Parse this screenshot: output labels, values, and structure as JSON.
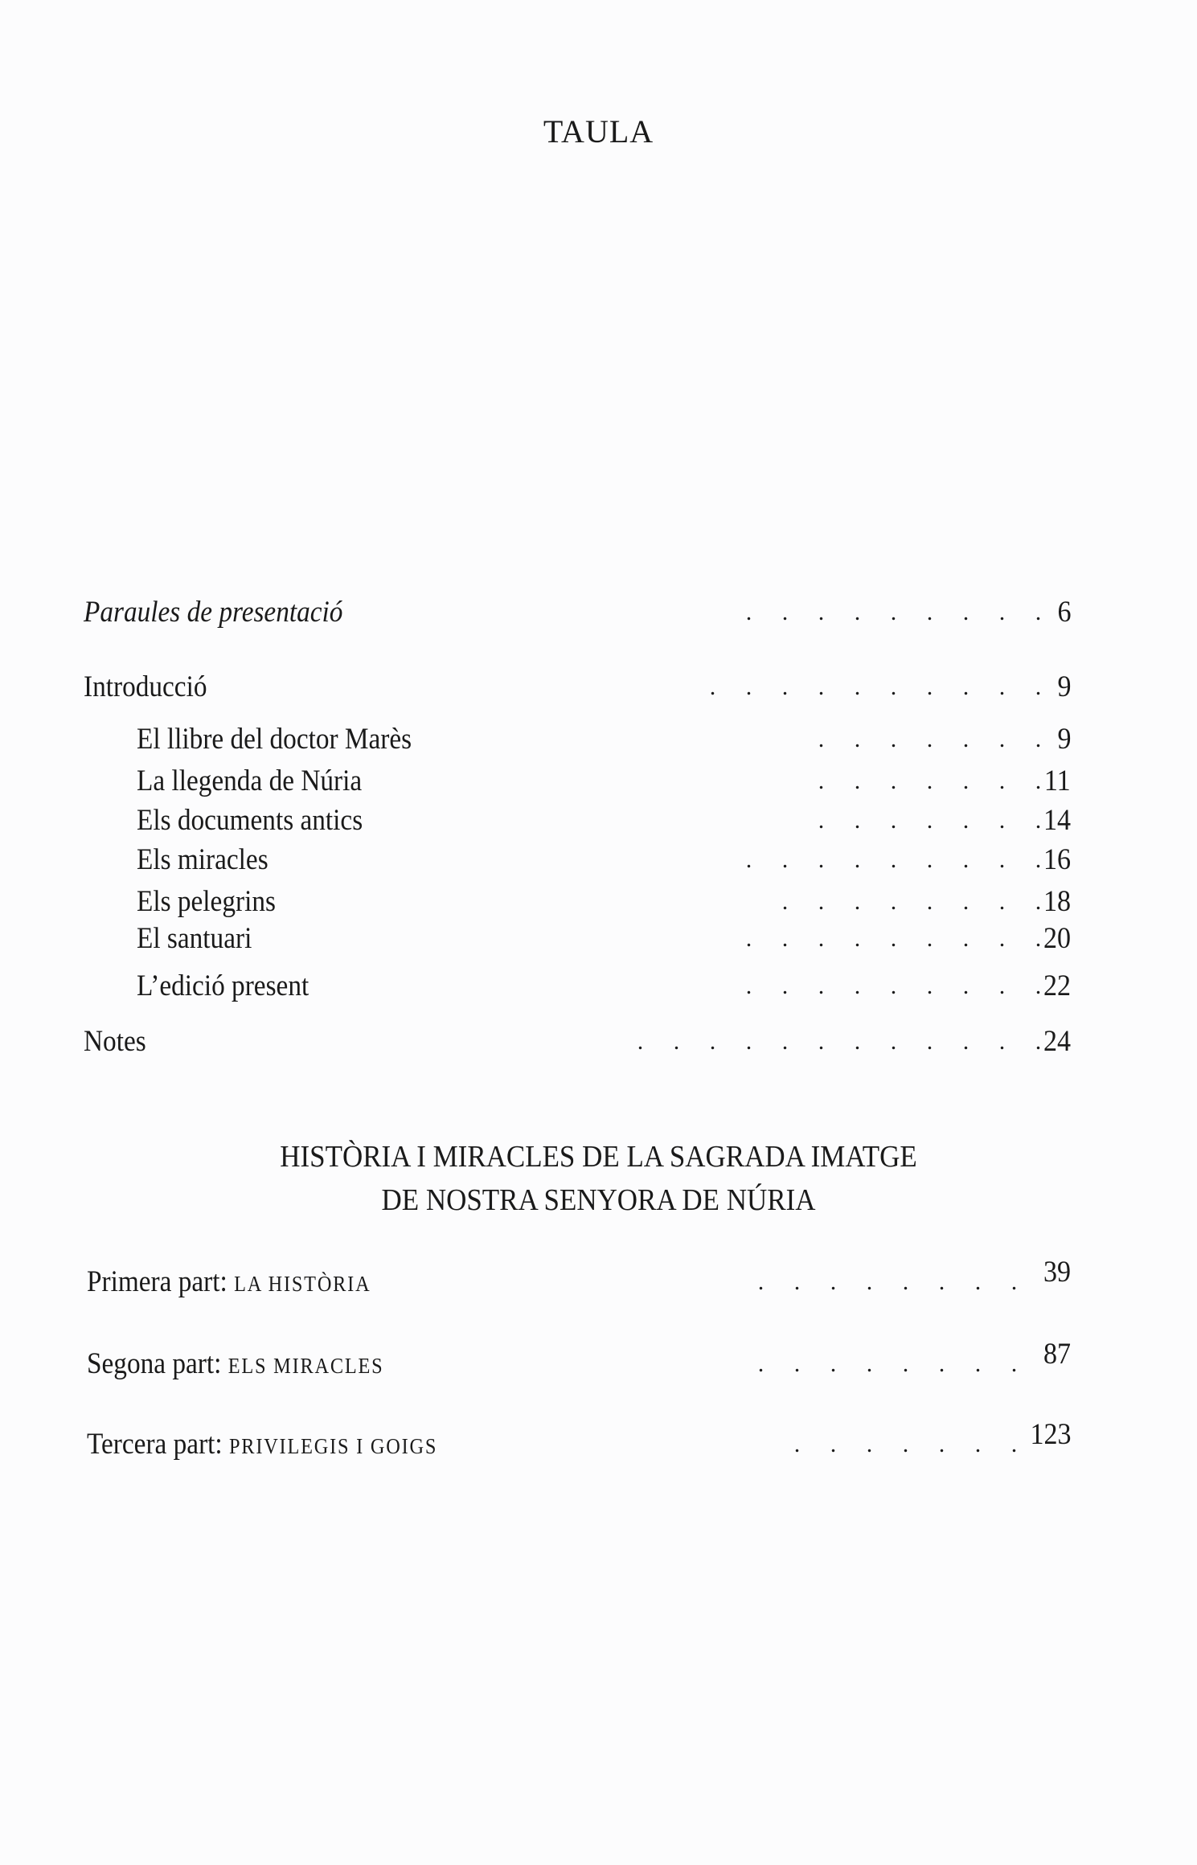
{
  "title": "TAULA",
  "front_entries": [
    {
      "label": "Paraules de presentació",
      "page": "6",
      "italic": true
    },
    {
      "label": "Introducció",
      "page": "9"
    },
    {
      "label": "El llibre del doctor Marès",
      "page": "9"
    },
    {
      "label": "La llegenda de Núria",
      "page": "11"
    },
    {
      "label": "Els documents antics",
      "page": "14"
    },
    {
      "label": "Els miracles",
      "page": "16"
    },
    {
      "label": "Els pelegrins",
      "page": "18"
    },
    {
      "label": "El santuari",
      "page": "20"
    },
    {
      "label": "L’edició present",
      "page": "22"
    },
    {
      "label": "Notes",
      "page": "24"
    }
  ],
  "section_heading": {
    "line1": "HISTÒRIA I MIRACLES DE LA SAGRADA IMATGE",
    "line2": "DE NOSTRA SENYORA DE NÚRIA"
  },
  "parts": [
    {
      "prefix": "Primera part:",
      "title": "LA HISTÒRIA",
      "page": "39"
    },
    {
      "prefix": "Segona part:",
      "title": "ELS MIRACLES",
      "page": "87"
    },
    {
      "prefix": "Tercera part:",
      "title": "PRIVILEGIS I GOIGS",
      "page": "123"
    }
  ]
}
